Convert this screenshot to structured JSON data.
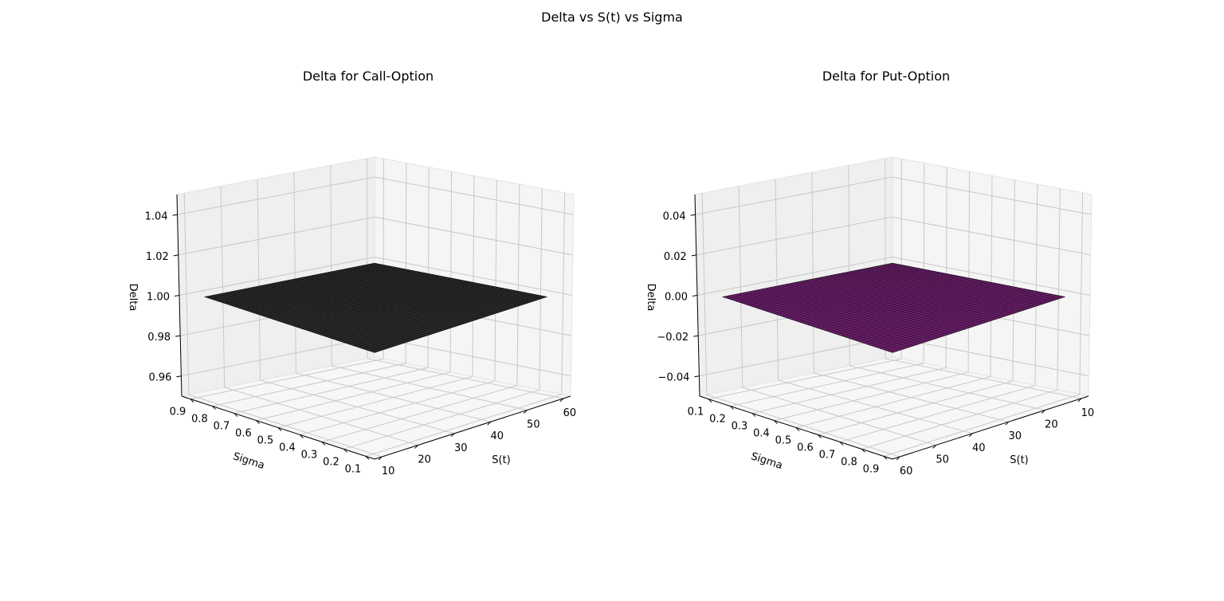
{
  "figure": {
    "suptitle": "Delta vs S(t) vs Sigma"
  },
  "colors": {
    "call_surface": "#2b2b2b",
    "put_surface": "#6b1f6b",
    "pane_left": "#efefef",
    "pane_right": "#f5f5f5",
    "pane_floor": "#f7f7f7",
    "grid": "#c8c8c8"
  },
  "chart_data": [
    {
      "type": "surface3d",
      "title": "Delta for Call-Option",
      "xlabel": "S(t)",
      "ylabel": "Sigma",
      "zlabel": "Delta",
      "x_ticks": [
        "10",
        "20",
        "30",
        "40",
        "50",
        "60"
      ],
      "y_ticks": [
        "0.1",
        "0.2",
        "0.3",
        "0.4",
        "0.5",
        "0.6",
        "0.7",
        "0.8",
        "0.9"
      ],
      "z_ticks": [
        "0.96",
        "0.98",
        "1.00",
        "1.02",
        "1.04"
      ],
      "x_range": [
        8,
        62
      ],
      "y_range": [
        0.06,
        0.94
      ],
      "z_range": [
        0.95,
        1.05
      ],
      "x_reversed": false,
      "y_reversed": true,
      "surface_value": 1.0,
      "surface_color": "#2b2b2b"
    },
    {
      "type": "surface3d",
      "title": "Delta for Put-Option",
      "xlabel": "S(t)",
      "ylabel": "Sigma",
      "zlabel": "Delta",
      "x_ticks": [
        "10",
        "20",
        "30",
        "40",
        "50",
        "60"
      ],
      "y_ticks": [
        "0.1",
        "0.2",
        "0.3",
        "0.4",
        "0.5",
        "0.6",
        "0.7",
        "0.8",
        "0.9"
      ],
      "z_ticks": [
        "−0.04",
        "−0.02",
        "0.00",
        "0.02",
        "0.04"
      ],
      "x_range": [
        8,
        62
      ],
      "y_range": [
        0.06,
        0.94
      ],
      "z_range": [
        -0.05,
        0.05
      ],
      "x_reversed": true,
      "y_reversed": false,
      "surface_value": 0.0,
      "surface_color": "#6b1f6b"
    }
  ]
}
